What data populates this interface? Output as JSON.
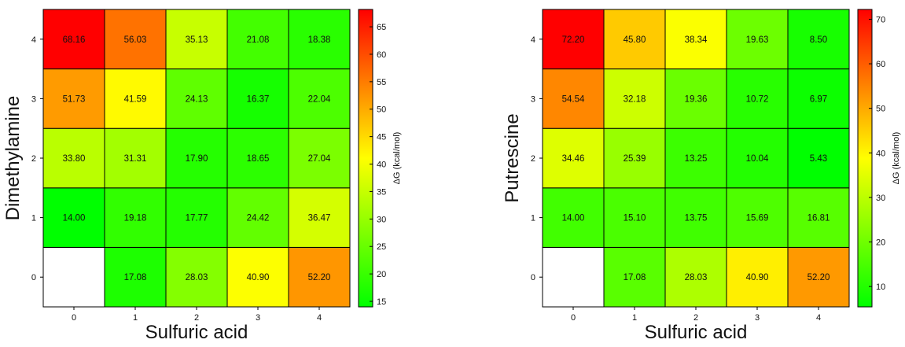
{
  "colors": {
    "low": "#00ff00",
    "mid": "#ffff00",
    "high": "#ff0000",
    "empty": "#ffffff",
    "grid": "#000000"
  },
  "chart_data": [
    {
      "type": "heatmap",
      "xlabel": "Sulfuric acid",
      "ylabel": "Dimethylamine",
      "colorbar_label": "ΔG (kcal/mol)",
      "x_categories": [
        "0",
        "1",
        "2",
        "3",
        "4"
      ],
      "y_categories": [
        "0",
        "1",
        "2",
        "3",
        "4"
      ],
      "x_tick_labels": [
        "0",
        "1",
        "2",
        "3",
        "4"
      ],
      "y_tick_labels": [
        "0",
        "1",
        "2",
        "3",
        "4"
      ],
      "values": [
        [
          null,
          17.08,
          28.03,
          40.9,
          52.2
        ],
        [
          14.0,
          19.18,
          17.77,
          24.42,
          36.47
        ],
        [
          33.8,
          31.31,
          17.9,
          18.65,
          27.04
        ],
        [
          51.73,
          41.59,
          24.13,
          16.37,
          22.04
        ],
        [
          68.16,
          56.03,
          35.13,
          21.08,
          18.38
        ]
      ],
      "cell_labels": [
        [
          "",
          "17.08",
          "28.03",
          "40.90",
          "52.20"
        ],
        [
          "14.00",
          "19.18",
          "17.77",
          "24.42",
          "36.47"
        ],
        [
          "33.80",
          "31.31",
          "17.90",
          "18.65",
          "27.04"
        ],
        [
          "51.73",
          "41.59",
          "24.13",
          "16.37",
          "22.04"
        ],
        [
          "68.16",
          "56.03",
          "35.13",
          "21.08",
          "18.38"
        ]
      ],
      "color_range": [
        14.0,
        68.16
      ],
      "colorbar_ticks": [
        "15",
        "20",
        "25",
        "30",
        "35",
        "40",
        "45",
        "50",
        "55",
        "60",
        "65"
      ],
      "colorbar_tick_values": [
        15,
        20,
        25,
        30,
        35,
        40,
        45,
        50,
        55,
        60,
        65
      ]
    },
    {
      "type": "heatmap",
      "xlabel": "Sulfuric acid",
      "ylabel": "Putrescine",
      "colorbar_label": "ΔG (kcal/mol)",
      "x_categories": [
        "0",
        "1",
        "2",
        "3",
        "4"
      ],
      "y_categories": [
        "0",
        "1",
        "2",
        "3",
        "4"
      ],
      "x_tick_labels": [
        "0",
        "1",
        "2",
        "3",
        "4"
      ],
      "y_tick_labels": [
        "0",
        "1",
        "2",
        "3",
        "4"
      ],
      "values": [
        [
          null,
          17.08,
          28.03,
          40.9,
          52.2
        ],
        [
          14.0,
          15.1,
          13.75,
          15.69,
          16.81
        ],
        [
          34.46,
          25.39,
          13.25,
          10.04,
          5.43
        ],
        [
          54.54,
          32.18,
          19.36,
          10.72,
          6.97
        ],
        [
          72.2,
          45.8,
          38.34,
          19.63,
          8.5
        ]
      ],
      "cell_labels": [
        [
          "",
          "17.08",
          "28.03",
          "40.90",
          "52.20"
        ],
        [
          "14.00",
          "15.10",
          "13.75",
          "15.69",
          "16.81"
        ],
        [
          "34.46",
          "25.39",
          "13.25",
          "10.04",
          "5.43"
        ],
        [
          "54.54",
          "32.18",
          "19.36",
          "10.72",
          "6.97"
        ],
        [
          "72.20",
          "45.80",
          "38.34",
          "19.63",
          "8.50"
        ]
      ],
      "color_range": [
        5.43,
        72.2
      ],
      "colorbar_ticks": [
        "10",
        "20",
        "30",
        "40",
        "50",
        "60",
        "70"
      ],
      "colorbar_tick_values": [
        10,
        20,
        30,
        40,
        50,
        60,
        70
      ]
    }
  ]
}
